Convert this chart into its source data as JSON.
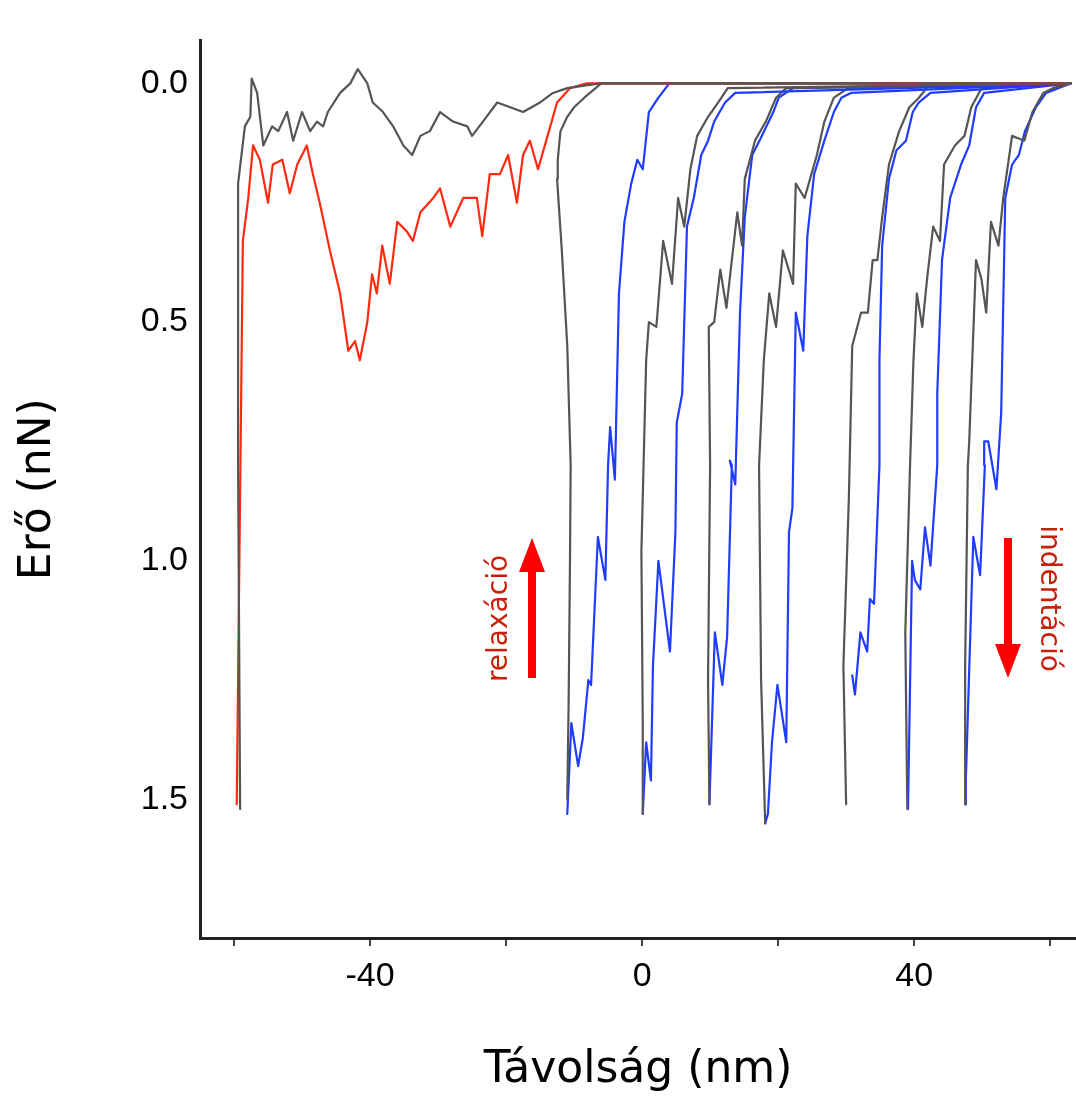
{
  "chart_data": {
    "type": "line",
    "xlabel": "Távolság (nm)",
    "ylabel": "Erő (nN)",
    "annotations": [
      "relaxáció",
      "indentáció"
    ],
    "xlim": [
      -65,
      63.8
    ],
    "xticks": [
      {
        "value": -60,
        "label": null
      },
      -40,
      {
        "value": -20,
        "label": null
      },
      0,
      {
        "value": 20,
        "label": null
      },
      40,
      {
        "value": 60,
        "label": null
      }
    ],
    "ylim": [
      1.79,
      -0.09
    ],
    "yticks": [
      {
        "value": 0,
        "label": "0.0"
      },
      {
        "value": 0.5,
        "label": "0.5"
      },
      {
        "value": 1,
        "label": "1.0"
      },
      {
        "value": 1.5,
        "label": "1.5"
      }
    ],
    "grid": false,
    "legend": false,
    "marker": "none",
    "line_style": "solid",
    "series": [
      {
        "type": "line",
        "color": "#555555",
        "x": [
          -59.1,
          -59.4,
          -59.4,
          -58.4,
          -57.6,
          -57.4,
          -56.6,
          -55.7,
          -54.4,
          -53.5,
          -52.2,
          -51.3,
          -50,
          -48.8,
          -47.8,
          -46.9,
          -46.2,
          -44.4,
          -42.9,
          -41.8,
          -40.4,
          -39.6,
          -38.1,
          -36.6,
          -35.1,
          -33.8,
          -32.6,
          -31.2,
          -29.7,
          -27.8,
          -25.7,
          -25,
          -23.4,
          -21.3,
          -19.4,
          -17.5,
          -15,
          -13.1,
          -11,
          -6.2,
          63
        ],
        "values": [
          1.52,
          0.8,
          0.21,
          0.09,
          0.07,
          -0.01,
          0.02,
          0.13,
          0.09,
          0.1,
          0.06,
          0.12,
          0.06,
          0.1,
          0.08,
          0.09,
          0.06,
          0.02,
          0,
          -0.03,
          0,
          0.04,
          0.06,
          0.09,
          0.13,
          0.15,
          0.11,
          0.1,
          0.06,
          0.08,
          0.09,
          0.11,
          0.08,
          0.04,
          0.05,
          0.06,
          0.04,
          0.02,
          0.01,
          0,
          0
        ]
      },
      {
        "type": "line",
        "color": "#ff2a10",
        "x": [
          -59.6,
          -58.7,
          -57.9,
          -57.2,
          -56.2,
          -55,
          -54.3,
          -52.9,
          -51.8,
          -50.7,
          -49.3,
          -48.4,
          -47.4,
          -45.9,
          -44.4,
          -43.2,
          -42.2,
          -41.5,
          -40.4,
          -39.7,
          -39,
          -38.2,
          -37.1,
          -36,
          -34.6,
          -33.7,
          -32.6,
          -30.7,
          -29.7,
          -28.2,
          -26.3,
          -24.3,
          -23.5,
          -22.4,
          -20.9,
          -19.7,
          -18.4,
          -17.5,
          -16.5,
          -15.3,
          -13.9,
          -12.5,
          -10.6,
          -8.1,
          63
        ],
        "values": [
          1.51,
          0.33,
          0.24,
          0.13,
          0.16,
          0.25,
          0.17,
          0.16,
          0.23,
          0.17,
          0.13,
          0.19,
          0.25,
          0.35,
          0.44,
          0.56,
          0.54,
          0.58,
          0.5,
          0.4,
          0.44,
          0.34,
          0.42,
          0.29,
          0.31,
          0.33,
          0.27,
          0.24,
          0.22,
          0.3,
          0.24,
          0.24,
          0.32,
          0.19,
          0.19,
          0.15,
          0.25,
          0.15,
          0.12,
          0.18,
          0.11,
          0.04,
          0.01,
          0,
          0
        ]
      },
      {
        "type": "line",
        "color": "#555555",
        "x": [
          -11,
          -10.8,
          -10.6,
          -10.5,
          -11,
          -11.8,
          -12.5,
          -12.4,
          -12,
          -11,
          -10,
          -8.5,
          -6,
          63
        ],
        "values": [
          1.5,
          1.3,
          1,
          0.8,
          0.55,
          0.35,
          0.2,
          0.16,
          0.1,
          0.07,
          0.05,
          0.03,
          0,
          0
        ]
      },
      {
        "type": "line",
        "color": "#1f3cff",
        "x": [
          -11,
          -10.4,
          -9.4,
          -8.7,
          -7.9,
          -7.5,
          -6.5,
          -5.4,
          -5,
          -4.7,
          -4,
          -3.4,
          -2.6,
          -1.6,
          -0.7,
          0.1,
          1,
          2.4,
          4,
          63
        ],
        "values": [
          1.53,
          1.34,
          1.43,
          1.37,
          1.25,
          1.26,
          0.95,
          1.04,
          0.8,
          0.72,
          0.83,
          0.44,
          0.29,
          0.21,
          0.16,
          0.18,
          0.06,
          0.03,
          0,
          0
        ]
      },
      {
        "type": "line",
        "color": "#555555",
        "x": [
          0.1,
          0.1,
          -0.1,
          0.6,
          1,
          2.1,
          3.1,
          4.4,
          5.3,
          6.2,
          7.1,
          8.1,
          9.7,
          11.2,
          12.6,
          63
        ],
        "values": [
          1.53,
          1.34,
          0.98,
          0.58,
          0.5,
          0.51,
          0.33,
          0.42,
          0.24,
          0.3,
          0.18,
          0.11,
          0.07,
          0.04,
          0.01,
          0
        ]
      },
      {
        "type": "line",
        "color": "#1f3cff",
        "x": [
          0.1,
          0.6,
          1.3,
          1.6,
          2.4,
          4.1,
          4.9,
          5.1,
          5.9,
          6.6,
          7.6,
          8.7,
          9.7,
          10.6,
          12.2,
          13.7,
          63
        ],
        "values": [
          1.53,
          1.38,
          1.46,
          1.22,
          1,
          1.19,
          0.94,
          0.71,
          0.65,
          0.3,
          0.24,
          0.15,
          0.12,
          0.08,
          0.04,
          0.02,
          0
        ]
      },
      {
        "type": "line",
        "color": "#555555",
        "x": [
          9.9,
          9.7,
          10,
          9.8,
          10.6,
          11.5,
          12.4,
          14,
          14.7,
          15.1,
          16.6,
          18.2,
          19.7,
          21.2,
          63
        ],
        "values": [
          1.51,
          1.25,
          0.8,
          0.51,
          0.5,
          0.39,
          0.47,
          0.27,
          0.34,
          0.2,
          0.12,
          0.08,
          0.03,
          0.01,
          0
        ]
      },
      {
        "type": "line",
        "color": "#1f3cff",
        "x": [
          9.9,
          10.7,
          11.8,
          12.5,
          13.2,
          12.9,
          13.7,
          14.4,
          15.1,
          16.2,
          17.6,
          19.3,
          20.1,
          22.2,
          63
        ],
        "values": [
          1.51,
          1.15,
          1.26,
          1.16,
          0.8,
          0.79,
          0.84,
          0.48,
          0.28,
          0.15,
          0.11,
          0.06,
          0.03,
          0.01,
          0
        ]
      },
      {
        "type": "line",
        "color": "#555555",
        "x": [
          18.1,
          17.5,
          17.2,
          17.9,
          18.7,
          19.7,
          20.7,
          22.2,
          22.6,
          23.9,
          24.7,
          25.7,
          26.8,
          28.2,
          30.3,
          63
        ],
        "values": [
          1.55,
          1.25,
          0.8,
          0.58,
          0.44,
          0.51,
          0.35,
          0.42,
          0.21,
          0.24,
          0.2,
          0.15,
          0.08,
          0.03,
          0.01,
          0
        ]
      },
      {
        "type": "line",
        "color": "#1f3cff",
        "x": [
          18.1,
          18.5,
          19.1,
          19.9,
          21.2,
          21.6,
          22.1,
          22.6,
          23.7,
          24.3,
          25.3,
          26.8,
          28.2,
          29.3,
          30.7,
          63
        ],
        "values": [
          1.55,
          1.53,
          1.38,
          1.26,
          1.38,
          0.94,
          0.89,
          0.48,
          0.56,
          0.32,
          0.19,
          0.12,
          0.06,
          0.03,
          0.02,
          0
        ]
      },
      {
        "type": "line",
        "color": "#555555",
        "x": [
          30,
          29.6,
          30.4,
          30.9,
          32.2,
          33.2,
          33.9,
          34.6,
          35.3,
          36.3,
          37.8,
          39.3,
          40.7,
          42.4,
          63
        ],
        "values": [
          1.51,
          1.22,
          0.87,
          0.55,
          0.48,
          0.48,
          0.37,
          0.37,
          0.28,
          0.17,
          0.1,
          0.05,
          0.03,
          0,
          0
        ]
      },
      {
        "type": "line",
        "color": "#1f3cff",
        "x": [
          30.9,
          31.3,
          32.1,
          33.1,
          33.5,
          34.1,
          34.9,
          34.9,
          35.3,
          36.3,
          37.4,
          38.8,
          39.8,
          40.7,
          42.4,
          63
        ],
        "values": [
          1.24,
          1.28,
          1.15,
          1.19,
          1.08,
          1.09,
          0.8,
          0.58,
          0.34,
          0.2,
          0.14,
          0.12,
          0.06,
          0.04,
          0.02,
          0
        ]
      },
      {
        "type": "line",
        "color": "#555555",
        "x": [
          39,
          38.7,
          39.4,
          39.9,
          40.4,
          41.2,
          41.9,
          42.8,
          43.8,
          44.4,
          46,
          47.4,
          48.4,
          49.9,
          63
        ],
        "values": [
          1.52,
          1.15,
          0.8,
          0.58,
          0.44,
          0.51,
          0.41,
          0.3,
          0.33,
          0.17,
          0.13,
          0.11,
          0.05,
          0.01,
          0
        ]
      },
      {
        "type": "line",
        "color": "#1f3cff",
        "x": [
          39.1,
          39.7,
          40.1,
          40.9,
          41.6,
          42.4,
          43.4,
          43.4,
          44.1,
          45.3,
          46.9,
          48.1,
          49.1,
          50.3,
          63
        ],
        "values": [
          1.52,
          1,
          1.04,
          1.06,
          0.93,
          1.01,
          0.8,
          0.65,
          0.37,
          0.24,
          0.17,
          0.13,
          0.05,
          0.02,
          0
        ]
      },
      {
        "type": "line",
        "color": "#555555",
        "x": [
          47.5,
          47.5,
          47.9,
          48.1,
          49.1,
          49.9,
          50.6,
          51.3,
          52.4,
          53.1,
          54.4,
          56.2,
          57.4,
          59,
          60.4,
          63
        ],
        "values": [
          1.51,
          1.22,
          0.8,
          0.75,
          0.37,
          0.41,
          0.48,
          0.29,
          0.34,
          0.24,
          0.11,
          0.12,
          0.06,
          0.02,
          0.01,
          0
        ]
      },
      {
        "type": "line",
        "color": "#1f3cff",
        "x": [
          47.5,
          47.6,
          48.7,
          49.7,
          50.4,
          50.3,
          50.9,
          52.1,
          52.8,
          53.4,
          54.4,
          55.4,
          56.3,
          57.9,
          59.4,
          63
        ],
        "values": [
          1.51,
          1.46,
          0.95,
          1.03,
          0.8,
          0.75,
          0.75,
          0.85,
          0.69,
          0.24,
          0.17,
          0.15,
          0.1,
          0.05,
          0.02,
          0
        ]
      }
    ]
  }
}
